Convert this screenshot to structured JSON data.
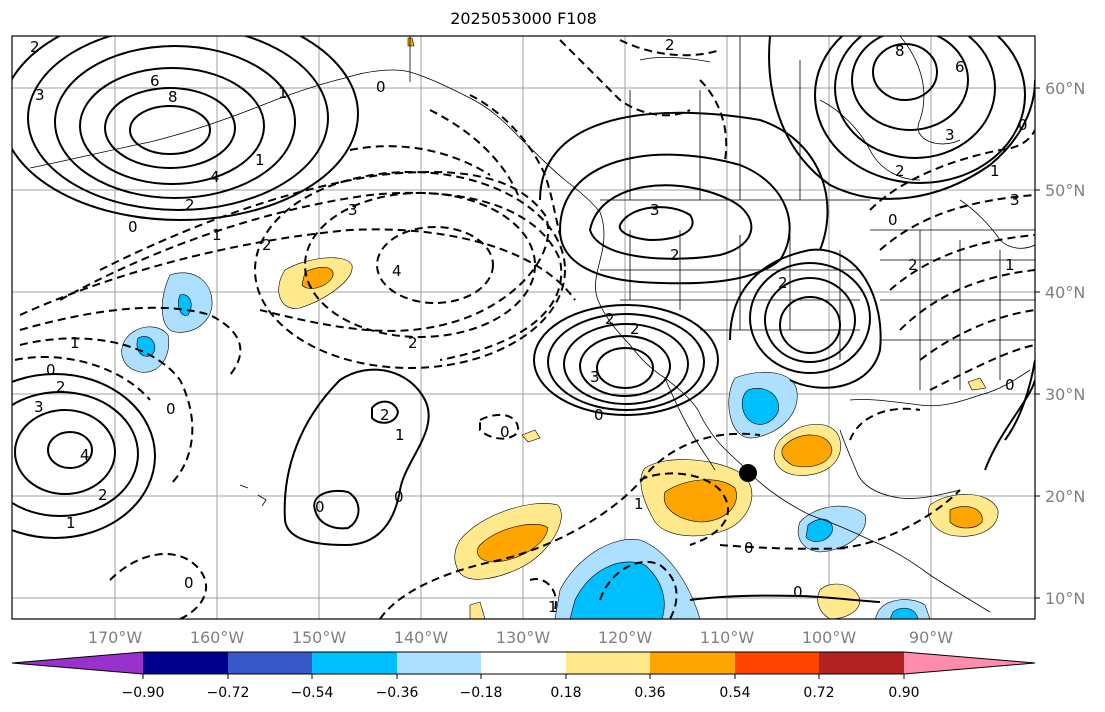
{
  "title": "2025053000 F108",
  "latitude_labels": [
    "60°N",
    "50°N",
    "40°N",
    "30°N",
    "20°N",
    "10°N"
  ],
  "longitude_labels": [
    "170°W",
    "160°W",
    "150°W",
    "140°W",
    "130°W",
    "120°W",
    "110°W",
    "100°W",
    "90°W"
  ],
  "colorbar": {
    "tick_labels": [
      "−0.90",
      "−0.72",
      "−0.54",
      "−0.36",
      "−0.18",
      "0.18",
      "0.36",
      "0.54",
      "0.72",
      "0.90"
    ],
    "colors": [
      "#9932CC",
      "#00008B",
      "#3858C8",
      "#00BFFF",
      "#ADDFFF",
      "#FFFFFF",
      "#FFE98C",
      "#FFA500",
      "#FF4500",
      "#B22222",
      "#FF8CAD"
    ]
  },
  "fill_colors": {
    "light_blue": "#ADDFFF",
    "deep_sky_blue": "#00BFFF",
    "light_yellow": "#FFE98C",
    "orange": "#FFA500"
  },
  "contour_labels": {
    "l1": "6",
    "l2": "8",
    "l3": "3",
    "l4": "4",
    "l5": "2",
    "l6": "0",
    "l7": "1",
    "l8": "3",
    "l9": "2",
    "l10": "1",
    "l11": "4",
    "l12": "2",
    "l13": "1",
    "l14": "0",
    "l15": "2",
    "l16": "2",
    "l17": "1",
    "l18": "0",
    "l19": "0",
    "l20": "0",
    "l21": "2",
    "l22": "3",
    "l23": "2",
    "l24": "2",
    "l25": "2",
    "l26": "3",
    "l27": "8",
    "l28": "6",
    "l29": "3",
    "l30": "2",
    "l31": "0",
    "l32": "0",
    "l33": "1",
    "l34": "2",
    "l35": "1",
    "l36": "4",
    "l37": "2",
    "l38": "1",
    "l39": "0",
    "l40": "0",
    "l41": "1",
    "l42": "0",
    "l43": "0",
    "l44": "2",
    "l45": "3",
    "l46": "0",
    "l47": "1",
    "l48": "2",
    "l49": "0",
    "l50": "0",
    "l51": "1",
    "l52": "3"
  }
}
